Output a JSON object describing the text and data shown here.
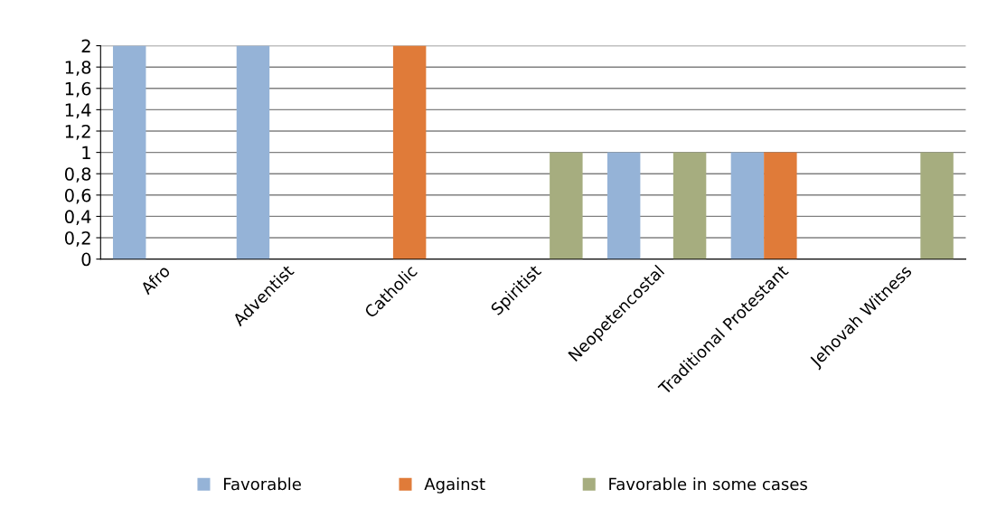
{
  "chart_data": {
    "type": "bar",
    "categories": [
      "Afro",
      "Adventist",
      "Catholic",
      "Spiritist",
      "Neopetencostal",
      "Traditional Protestant",
      "Jehovah Witness"
    ],
    "series": [
      {
        "name": "Favorable",
        "color": "#95b3d7",
        "values": [
          2,
          2,
          null,
          null,
          1,
          1,
          null
        ]
      },
      {
        "name": "Against",
        "color": "#e07b39",
        "values": [
          null,
          null,
          2,
          null,
          null,
          1,
          null
        ]
      },
      {
        "name": "Favorable in some cases",
        "color": "#a6ad7f",
        "values": [
          null,
          null,
          null,
          1,
          1,
          null,
          1
        ]
      }
    ],
    "ylim": [
      0,
      2
    ],
    "yticks": [
      0,
      {
        "value": 0.2,
        "label": "0,2"
      },
      {
        "value": 0.4,
        "label": "0,4"
      },
      {
        "value": 0.6,
        "label": "0,6"
      },
      {
        "value": 0.8,
        "label": "0,8"
      },
      1,
      {
        "value": 1.2,
        "label": "1,2"
      },
      {
        "value": 1.4,
        "label": "1,4"
      },
      {
        "value": 1.6,
        "label": "1,6"
      },
      {
        "value": 1.8,
        "label": "1,8"
      },
      2
    ],
    "grid": "y",
    "legend": "bottom"
  }
}
